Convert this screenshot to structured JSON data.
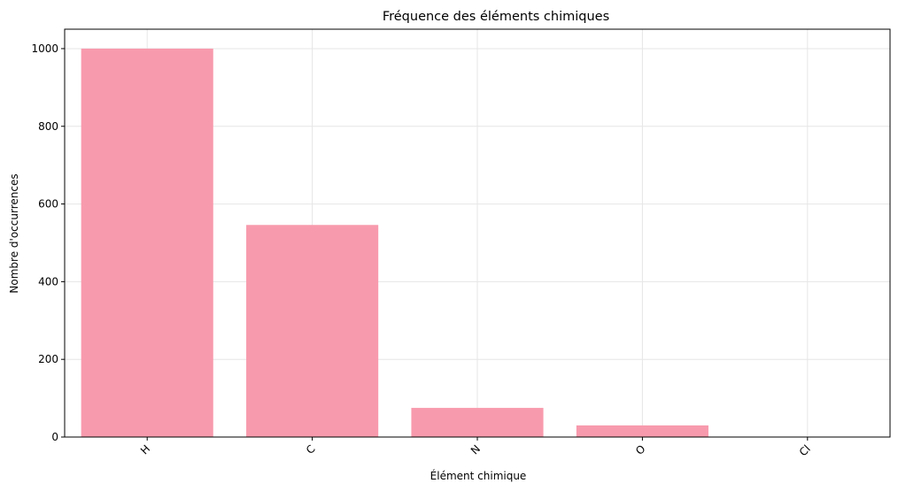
{
  "chart_data": {
    "type": "bar",
    "title": "Fréquence des éléments chimiques",
    "xlabel": "Élément chimique",
    "ylabel": "Nombre d'occurrences",
    "categories": [
      "H",
      "C",
      "N",
      "O",
      "Cl"
    ],
    "values": [
      1000,
      546,
      75,
      30,
      1
    ],
    "ylim": [
      0,
      1050
    ],
    "yticks": [
      0,
      200,
      400,
      600,
      800,
      1000
    ],
    "grid": true,
    "bar_color": "#f89aad",
    "x_tick_rotation": 45
  }
}
